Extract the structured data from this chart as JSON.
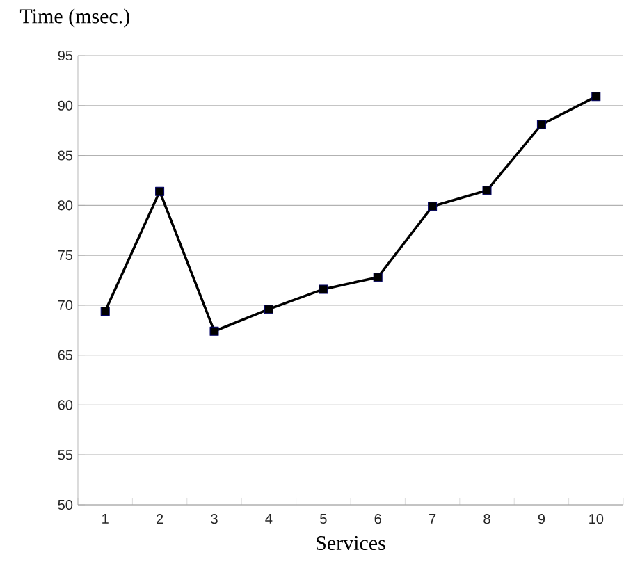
{
  "chart_data": {
    "type": "line",
    "ylabel": "Time (msec.)",
    "xlabel": "Services",
    "categories": [
      "1",
      "2",
      "3",
      "4",
      "5",
      "6",
      "7",
      "8",
      "9",
      "10"
    ],
    "series": [
      {
        "color": "#000000",
        "values": [
          69.4,
          81.4,
          67.4,
          69.6,
          71.6,
          72.8,
          79.9,
          81.5,
          88.1,
          90.9
        ]
      }
    ],
    "ylim": [
      50,
      95
    ],
    "yticks": [
      50,
      55,
      60,
      65,
      70,
      75,
      80,
      85,
      90,
      95
    ],
    "grid": "y",
    "marker": "square",
    "line_style": "solid"
  }
}
